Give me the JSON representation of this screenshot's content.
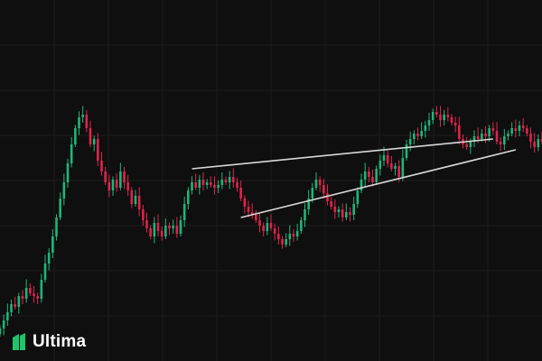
{
  "brand": {
    "name": "Ultima",
    "icon": "ultima-logo-icon",
    "accent": "#1fc46b"
  },
  "chart_data": {
    "type": "candlestick",
    "title": "",
    "xlabel": "",
    "ylabel": "",
    "grid": true,
    "ylim": [
      0,
      100
    ],
    "colors": {
      "up": "#1fb57a",
      "down": "#e0234e",
      "trendline": "#d9d9d9",
      "background": "#0f0f0f",
      "grid": "#1c1c1c"
    },
    "close": [
      2,
      5,
      8,
      11,
      10,
      14,
      13,
      17,
      15,
      14,
      13,
      20,
      26,
      30,
      36,
      43,
      50,
      56,
      63,
      70,
      76,
      80,
      81,
      76,
      70,
      72,
      64,
      60,
      56,
      53,
      57,
      54,
      60,
      56,
      53,
      48,
      51,
      46,
      42,
      39,
      36,
      41,
      38,
      36,
      40,
      39,
      40,
      37,
      42,
      48,
      53,
      56,
      54,
      57,
      55,
      56,
      55,
      54,
      55,
      57,
      56,
      58,
      56,
      54,
      50,
      47,
      45,
      44,
      42,
      40,
      38,
      41,
      39,
      37,
      35,
      33,
      35,
      37,
      36,
      38,
      42,
      46,
      50,
      54,
      57,
      55,
      52,
      49,
      47,
      45,
      46,
      43,
      45,
      44,
      48,
      53,
      57,
      60,
      58,
      56,
      61,
      64,
      66,
      63,
      61,
      62,
      58,
      65,
      70,
      72,
      74,
      73,
      75,
      77,
      79,
      82,
      81,
      79,
      81,
      80,
      78,
      77,
      72,
      70,
      69,
      71,
      73,
      72,
      74,
      73,
      76,
      75,
      71,
      70,
      73,
      74,
      76,
      75,
      77,
      76,
      74,
      71,
      69,
      72,
      71
    ],
    "trendlines": [
      {
        "from": [
          51,
          61
        ],
        "to": [
          131,
          72
        ]
      },
      {
        "from": [
          64,
          43
        ],
        "to": [
          137,
          68
        ]
      }
    ]
  }
}
